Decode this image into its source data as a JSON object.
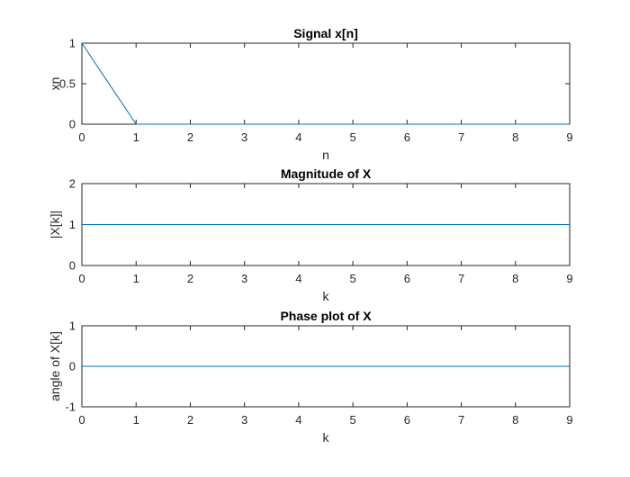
{
  "chart_data": [
    {
      "type": "line",
      "title": "Signal x[n]",
      "xlabel": "n",
      "ylabel": "xn",
      "xlim": [
        0,
        9
      ],
      "ylim": [
        0,
        1
      ],
      "x_ticks": [
        "0",
        "1",
        "2",
        "3",
        "4",
        "5",
        "6",
        "7",
        "8",
        "9"
      ],
      "y_ticks": [
        "0",
        "0.5",
        "1"
      ],
      "grid": false,
      "series": [
        {
          "x": [
            0,
            1,
            2,
            3,
            4,
            5,
            6,
            7,
            8,
            9
          ],
          "values": [
            1,
            0,
            0,
            0,
            0,
            0,
            0,
            0,
            0,
            0
          ],
          "color": "#0072BD"
        }
      ]
    },
    {
      "type": "line",
      "title": "Magnitude of X",
      "xlabel": "k",
      "ylabel": "|X[k]|",
      "xlim": [
        0,
        9
      ],
      "ylim": [
        0,
        2
      ],
      "x_ticks": [
        "0",
        "1",
        "2",
        "3",
        "4",
        "5",
        "6",
        "7",
        "8",
        "9"
      ],
      "y_ticks": [
        "0",
        "1",
        "2"
      ],
      "grid": false,
      "series": [
        {
          "x": [
            0,
            1,
            2,
            3,
            4,
            5,
            6,
            7,
            8,
            9
          ],
          "values": [
            1,
            1,
            1,
            1,
            1,
            1,
            1,
            1,
            1,
            1
          ],
          "color": "#0072BD"
        }
      ]
    },
    {
      "type": "line",
      "title": "Phase plot of X",
      "xlabel": "k",
      "ylabel": "angle of X[k]",
      "xlim": [
        0,
        9
      ],
      "ylim": [
        -1,
        1
      ],
      "x_ticks": [
        "0",
        "1",
        "2",
        "3",
        "4",
        "5",
        "6",
        "7",
        "8",
        "9"
      ],
      "y_ticks": [
        "-1",
        "0",
        "1"
      ],
      "grid": false,
      "series": [
        {
          "x": [
            0,
            1,
            2,
            3,
            4,
            5,
            6,
            7,
            8,
            9
          ],
          "values": [
            0,
            0,
            0,
            0,
            0,
            0,
            0,
            0,
            0,
            0
          ],
          "color": "#0072BD"
        }
      ]
    }
  ]
}
